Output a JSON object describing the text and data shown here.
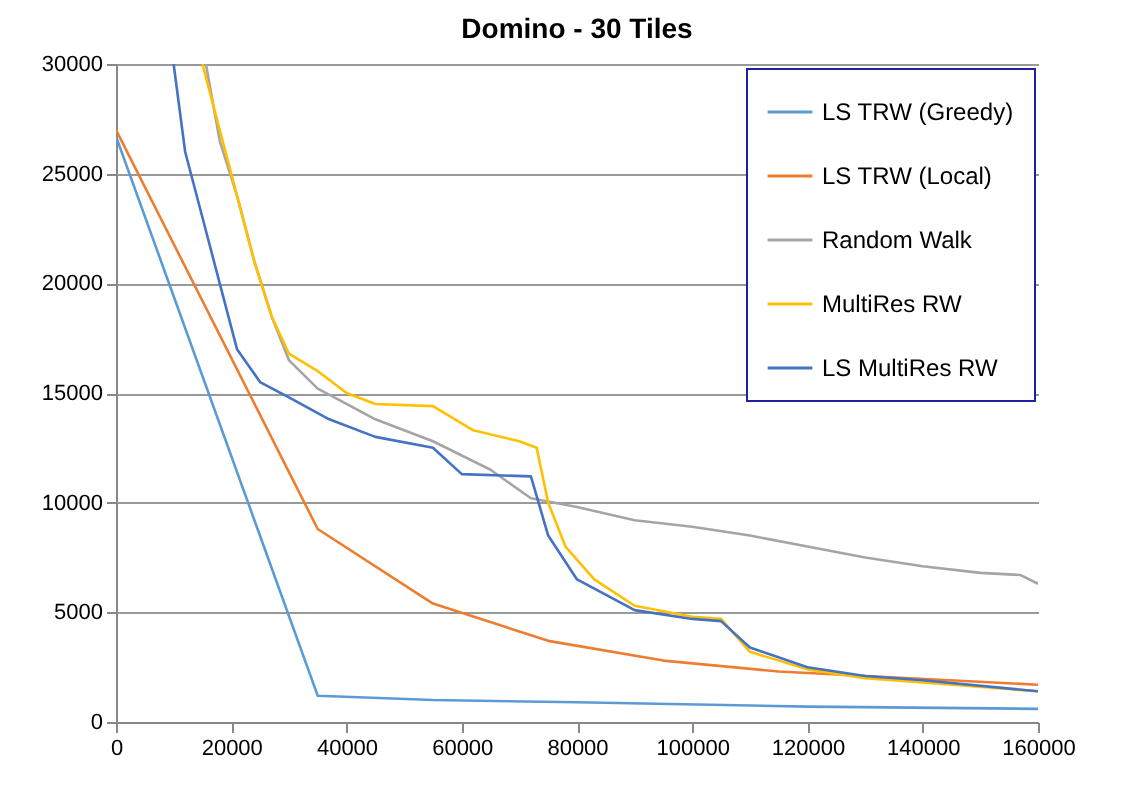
{
  "chart_data": {
    "type": "line",
    "title": "Domino - 30 Tiles",
    "xlim": [
      0,
      160000
    ],
    "xticks": [
      0,
      20000,
      40000,
      60000,
      80000,
      100000,
      120000,
      140000,
      160000
    ],
    "ylim": [
      0,
      30000
    ],
    "yticks": [
      0,
      5000,
      10000,
      15000,
      20000,
      25000,
      30000
    ],
    "grid": "y",
    "legend": "top right",
    "marker": "none",
    "line_style": "solid",
    "series": [
      {
        "name": "LS TRW (Greedy)",
        "color": "#5b9bd5",
        "x": [
          0,
          35000,
          55000,
          80000,
          120000,
          160000
        ],
        "values": [
          26700,
          1200,
          1000,
          900,
          700,
          600
        ]
      },
      {
        "name": "LS TRW (Local)",
        "color": "#ed7d31",
        "x": [
          0,
          35000,
          55000,
          75000,
          95000,
          115000,
          160000
        ],
        "values": [
          27000,
          8800,
          5400,
          3700,
          2800,
          2300,
          1700
        ]
      },
      {
        "name": "Random Walk",
        "color": "#a5a5a5",
        "x": [
          15600,
          18000,
          21000,
          24000,
          27000,
          30000,
          35000,
          40000,
          45000,
          55000,
          65000,
          72000,
          80000,
          90000,
          100000,
          110000,
          120000,
          130000,
          140000,
          150000,
          157000,
          160000
        ],
        "values": [
          30000,
          26500,
          24000,
          21000,
          18500,
          16500,
          15200,
          14500,
          13800,
          12800,
          11500,
          10200,
          9800,
          9200,
          8900,
          8500,
          8000,
          7500,
          7100,
          6800,
          6700,
          6300
        ]
      },
      {
        "name": "MultiRes RW",
        "color": "#ffc000",
        "x": [
          15000,
          18000,
          21000,
          24000,
          27000,
          30000,
          35000,
          40000,
          45000,
          55000,
          62000,
          70000,
          73000,
          75000,
          78000,
          83000,
          90000,
          100000,
          105000,
          110000,
          120000,
          130000,
          140000,
          160000
        ],
        "values": [
          30000,
          27000,
          24000,
          21000,
          18500,
          16800,
          16000,
          15000,
          14500,
          14400,
          13300,
          12800,
          12500,
          10000,
          8000,
          6500,
          5300,
          4800,
          4700,
          3200,
          2400,
          2000,
          1800,
          1400
        ]
      },
      {
        "name": "LS MultiRes RW",
        "color": "#4472c4",
        "x": [
          10000,
          12000,
          15000,
          18000,
          21000,
          25000,
          30000,
          37000,
          45000,
          55000,
          60000,
          72000,
          75000,
          80000,
          90000,
          100000,
          105000,
          110000,
          120000,
          130000,
          140000,
          160000
        ],
        "values": [
          30000,
          26000,
          23000,
          20000,
          17000,
          15500,
          14800,
          13800,
          13000,
          12500,
          11300,
          11200,
          8500,
          6500,
          5100,
          4700,
          4600,
          3400,
          2500,
          2100,
          1900,
          1400
        ]
      }
    ]
  }
}
